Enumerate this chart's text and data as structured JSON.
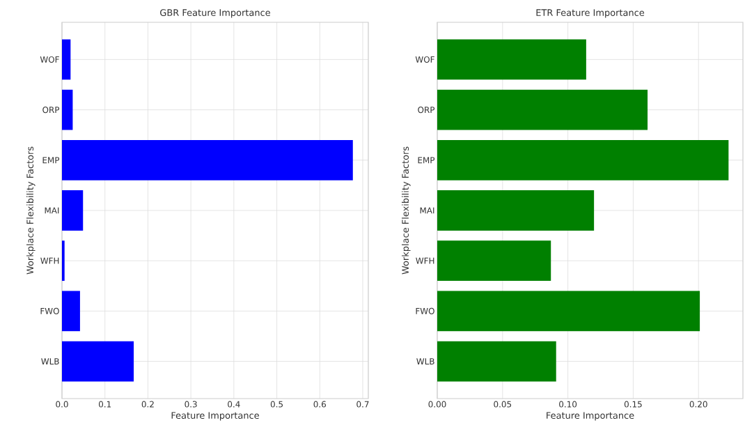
{
  "chart_data": [
    {
      "type": "bar",
      "orientation": "horizontal",
      "title": "GBR Feature Importance",
      "xlabel": "Feature Importance",
      "ylabel": "Workplace Flexibility Factors",
      "categories": [
        "WOF",
        "ORP",
        "EMP",
        "MAI",
        "WFH",
        "FWO",
        "WLB"
      ],
      "values": [
        0.02,
        0.025,
        0.677,
        0.049,
        0.006,
        0.042,
        0.167
      ],
      "color": "#0000ff",
      "xlim": [
        0,
        0.713
      ],
      "xticks": [
        {
          "value": 0,
          "label": "0.0"
        },
        {
          "value": 0.1,
          "label": "0.1"
        },
        {
          "value": 0.2,
          "label": "0.2"
        },
        {
          "value": 0.3,
          "label": "0.3"
        },
        {
          "value": 0.4,
          "label": "0.4"
        },
        {
          "value": 0.5,
          "label": "0.5"
        },
        {
          "value": 0.6,
          "label": "0.6"
        },
        {
          "value": 0.7,
          "label": "0.7"
        }
      ],
      "grid": true
    },
    {
      "type": "bar",
      "orientation": "horizontal",
      "title": "ETR Feature Importance",
      "xlabel": "Feature Importance",
      "ylabel": "Workplace Flexibility Factors",
      "categories": [
        "WOF",
        "ORP",
        "EMP",
        "MAI",
        "WFH",
        "FWO",
        "WLB"
      ],
      "values": [
        0.114,
        0.161,
        0.223,
        0.12,
        0.087,
        0.201,
        0.091
      ],
      "color": "#008000",
      "xlim": [
        0,
        0.234
      ],
      "xticks": [
        {
          "value": 0,
          "label": "0.00"
        },
        {
          "value": 0.05,
          "label": "0.05"
        },
        {
          "value": 0.1,
          "label": "0.10"
        },
        {
          "value": 0.15,
          "label": "0.15"
        },
        {
          "value": 0.2,
          "label": "0.20"
        }
      ],
      "grid": true
    }
  ]
}
